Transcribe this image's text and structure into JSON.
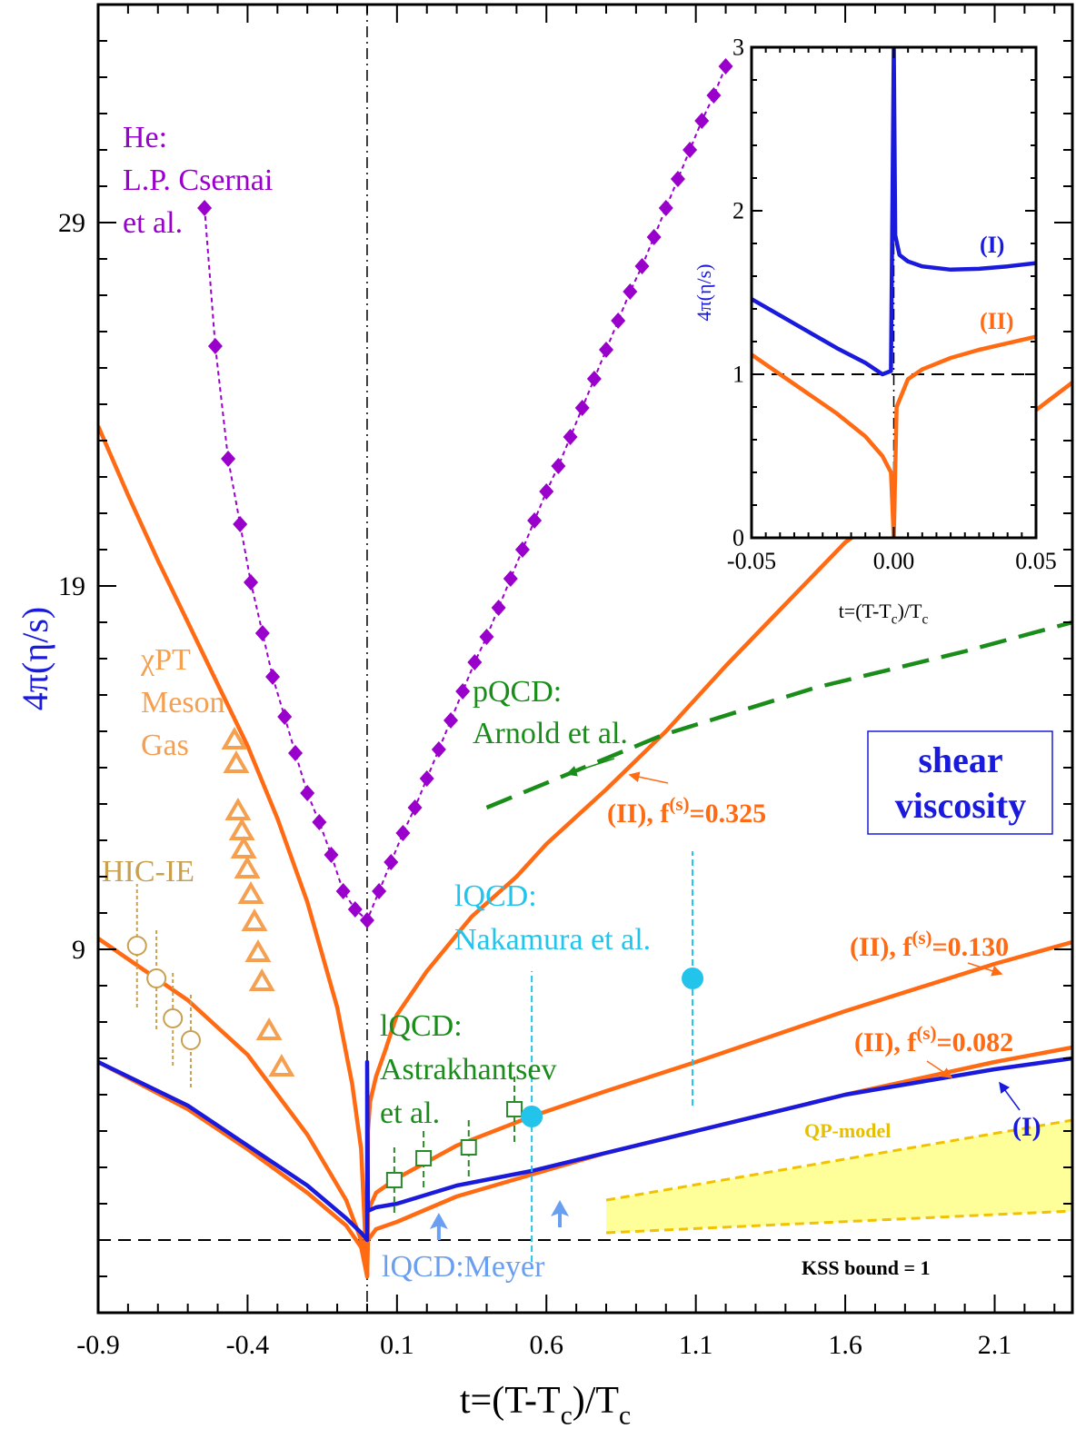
{
  "chart_data": [
    {
      "type": "line",
      "xlabel": [
        "t=(T-T",
        "c",
        ")/T",
        "c"
      ],
      "ylabel": "4π(η/s)",
      "xlim": [
        -0.9,
        2.36
      ],
      "ylim": [
        -1,
        35
      ],
      "xticks": [
        -0.9,
        -0.4,
        0.1,
        0.6,
        1.1,
        1.6,
        2.1
      ],
      "yticks": [
        9,
        19,
        29
      ],
      "hlines": [
        {
          "value": 1,
          "label": "KSS bound = 1"
        }
      ],
      "vlines": [
        0
      ],
      "box_label": [
        "shear",
        "viscosity"
      ],
      "series": [
        {
          "name": [
            "He:",
            "L.P. Csernai",
            "et al."
          ],
          "color": "#9900cc",
          "line_style": "dotted",
          "marker": "diamond",
          "x": [
            -0.544,
            -0.508,
            -0.465,
            -0.425,
            -0.389,
            -0.35,
            -0.316,
            -0.276,
            -0.24,
            -0.2,
            -0.16,
            -0.12,
            -0.08,
            -0.04,
            0,
            0.04,
            0.08,
            0.12,
            0.16,
            0.2,
            0.24,
            0.28,
            0.32,
            0.36,
            0.4,
            0.44,
            0.48,
            0.52,
            0.56,
            0.6,
            0.64,
            0.68,
            0.72,
            0.76,
            0.8,
            0.84,
            0.88,
            0.92,
            0.96,
            1.0,
            1.04,
            1.08,
            1.12,
            1.16,
            1.2
          ],
          "values": [
            29.4,
            25.6,
            22.5,
            20.7,
            19.1,
            17.7,
            16.5,
            15.4,
            14.4,
            13.3,
            12.5,
            11.6,
            10.6,
            10.1,
            9.8,
            10.6,
            11.4,
            12.2,
            12.9,
            13.7,
            14.5,
            15.3,
            16.1,
            16.9,
            17.6,
            18.4,
            19.2,
            20.0,
            20.8,
            21.6,
            22.3,
            23.1,
            23.9,
            24.7,
            25.5,
            26.3,
            27.1,
            27.8,
            28.6,
            29.4,
            30.2,
            31.0,
            31.8,
            32.5,
            33.3
          ]
        },
        {
          "name": [
            "(II), f",
            "(s)",
            "=0.325"
          ],
          "color": "#ff6a13",
          "line_style": "solid",
          "x": [
            -0.9,
            -0.8,
            -0.7,
            -0.6,
            -0.5,
            -0.4,
            -0.3,
            -0.2,
            -0.1,
            -0.05,
            -0.02,
            0,
            0.003,
            0.01,
            0.03,
            0.06,
            0.1,
            0.2,
            0.35,
            0.5,
            0.6,
            0.8,
            1.0,
            1.2,
            1.4,
            1.6,
            1.8,
            2.0,
            2.2,
            2.36
          ],
          "values": [
            23.4,
            21.5,
            19.7,
            18.0,
            16.3,
            14.6,
            12.6,
            10.3,
            7.4,
            5.3,
            3.5,
            0,
            4.0,
            4.8,
            5.5,
            6.2,
            7.2,
            8.4,
            9.9,
            11.0,
            11.9,
            13.4,
            15.0,
            16.8,
            18.5,
            20.2,
            21.4,
            22.5,
            23.6,
            24.6
          ]
        },
        {
          "name": [
            "(II), f",
            "(s)",
            "=0.130"
          ],
          "color": "#ff6a13",
          "line_style": "solid",
          "x": [
            -0.9,
            -0.6,
            -0.4,
            -0.2,
            -0.07,
            -0.02,
            0,
            0.003,
            0.03,
            0.1,
            0.3,
            0.55,
            0.8,
            1.1,
            1.6,
            2.1,
            2.36
          ],
          "values": [
            9.3,
            7.6,
            6.1,
            3.9,
            2.1,
            1.0,
            0,
            1.8,
            2.3,
            2.7,
            3.6,
            4.4,
            5.1,
            5.9,
            7.3,
            8.6,
            9.2
          ]
        },
        {
          "name": [
            "(II), f",
            "(s)",
            "=0.082"
          ],
          "color": "#ff6a13",
          "line_style": "solid",
          "x": [
            -0.9,
            -0.6,
            -0.4,
            -0.2,
            -0.07,
            -0.02,
            0,
            0.003,
            0.03,
            0.1,
            0.3,
            0.55,
            0.8,
            1.1,
            1.6,
            2.1,
            2.36
          ],
          "values": [
            5.9,
            4.6,
            3.5,
            2.3,
            1.4,
            0.8,
            0,
            1.0,
            1.3,
            1.5,
            2.2,
            2.8,
            3.4,
            4.0,
            5.0,
            5.9,
            6.3
          ]
        },
        {
          "name": "(I)",
          "color": "#1a1adc",
          "line_style": "solid",
          "x": [
            -0.9,
            -0.6,
            -0.4,
            -0.2,
            -0.07,
            -0.02,
            0,
            0,
            0.003,
            0.03,
            0.1,
            0.3,
            0.55,
            0.8,
            1.1,
            1.6,
            2.1,
            2.36
          ],
          "values": [
            5.9,
            4.7,
            3.6,
            2.5,
            1.6,
            1.2,
            1.0,
            5.9,
            1.8,
            1.9,
            2.0,
            2.5,
            2.9,
            3.4,
            4.0,
            5.0,
            5.7,
            6.0
          ]
        },
        {
          "name": [
            "pQCD:",
            "Arnold et al."
          ],
          "color": "#1a8c1a",
          "line_style": "dashed",
          "x": [
            0.4,
            0.99,
            1.5,
            2.0,
            2.36
          ],
          "values": [
            12.9,
            14.9,
            16.2,
            17.2,
            18.0
          ]
        }
      ],
      "points": [
        {
          "name": "HIC-IE",
          "color": "#c8a050",
          "marker": "circle-open",
          "line_style": "dotted",
          "x": [
            -0.77,
            -0.705,
            -0.65,
            -0.59
          ],
          "values": [
            9.1,
            8.2,
            7.1,
            6.5
          ],
          "errors": [
            1.7,
            1.4,
            1.3,
            1.3
          ]
        },
        {
          "name": [
            "χPT",
            "Meson",
            "Gas"
          ],
          "color": "#f5a050",
          "marker": "triangle-open",
          "x": [
            -0.444,
            -0.438,
            -0.432,
            -0.419,
            -0.413,
            -0.401,
            -0.389,
            -0.377,
            -0.365,
            -0.352,
            -0.328,
            -0.286
          ],
          "values": [
            14.75,
            14.1,
            12.8,
            12.25,
            11.75,
            11.2,
            10.5,
            9.75,
            8.9,
            8.1,
            6.75,
            5.75
          ]
        },
        {
          "name": [
            "lQCD:",
            "Astrakhantsev",
            "et al."
          ],
          "color": "#2a8a2a",
          "marker": "square-open",
          "line_style": "dashed",
          "x": [
            0.091,
            0.189,
            0.34,
            0.493
          ],
          "values": [
            2.65,
            3.25,
            3.55,
            4.6
          ],
          "errors": [
            0.9,
            0.8,
            0.8,
            0.9
          ]
        },
        {
          "name": [
            "lQCD:",
            "Nakamura et al."
          ],
          "color": "#22c4ec",
          "marker": "circle",
          "line_style": "dashed",
          "x": [
            0.551,
            1.089
          ],
          "values": [
            4.4,
            8.2
          ],
          "errors": [
            4.0,
            3.5
          ]
        },
        {
          "name": "lQCD:Meyer",
          "color": "#6a9ef0",
          "marker": "arrow-up",
          "x": [
            0.24,
            0.645
          ],
          "values": [
            1.75,
            2.1
          ]
        }
      ],
      "band": {
        "name": "QP-model",
        "color": "#ffff99",
        "edge_color": "#f2c200",
        "x": [
          0.8,
          2.36
        ],
        "lower": [
          1.2,
          1.8
        ],
        "upper": [
          2.1,
          4.3
        ]
      }
    },
    {
      "type": "line",
      "xlabel": [
        "t=(T-T",
        "c",
        ")/T",
        "c"
      ],
      "ylabel": "4π(η/s)",
      "xlim": [
        -0.05,
        0.05
      ],
      "ylim": [
        0,
        3
      ],
      "xticks": [
        -0.05,
        {
          "value": 0,
          "label": "0.00"
        },
        0.05
      ],
      "yticks": [
        0,
        1,
        2,
        3
      ],
      "hlines": [
        1
      ],
      "vlines": [
        0
      ],
      "series": [
        {
          "name": "(I)",
          "color": "#1a1adc",
          "line_style": "solid",
          "x": [
            -0.05,
            -0.04,
            -0.03,
            -0.02,
            -0.01,
            -0.004,
            -0.001,
            0,
            0.0005,
            0.002,
            0.005,
            0.01,
            0.02,
            0.03,
            0.04,
            0.05
          ],
          "values": [
            1.46,
            1.36,
            1.26,
            1.16,
            1.07,
            1.0,
            1.02,
            3,
            1.85,
            1.73,
            1.69,
            1.66,
            1.64,
            1.645,
            1.66,
            1.68
          ]
        },
        {
          "name": "(II)",
          "color": "#ff6a13",
          "line_style": "solid",
          "x": [
            -0.05,
            -0.04,
            -0.03,
            -0.02,
            -0.01,
            -0.004,
            -0.001,
            0,
            0.001,
            0.005,
            0.01,
            0.02,
            0.03,
            0.04,
            0.05
          ],
          "values": [
            1.12,
            1.0,
            0.88,
            0.76,
            0.62,
            0.5,
            0.4,
            0,
            0.8,
            0.97,
            1.03,
            1.1,
            1.15,
            1.19,
            1.23
          ]
        }
      ]
    }
  ]
}
